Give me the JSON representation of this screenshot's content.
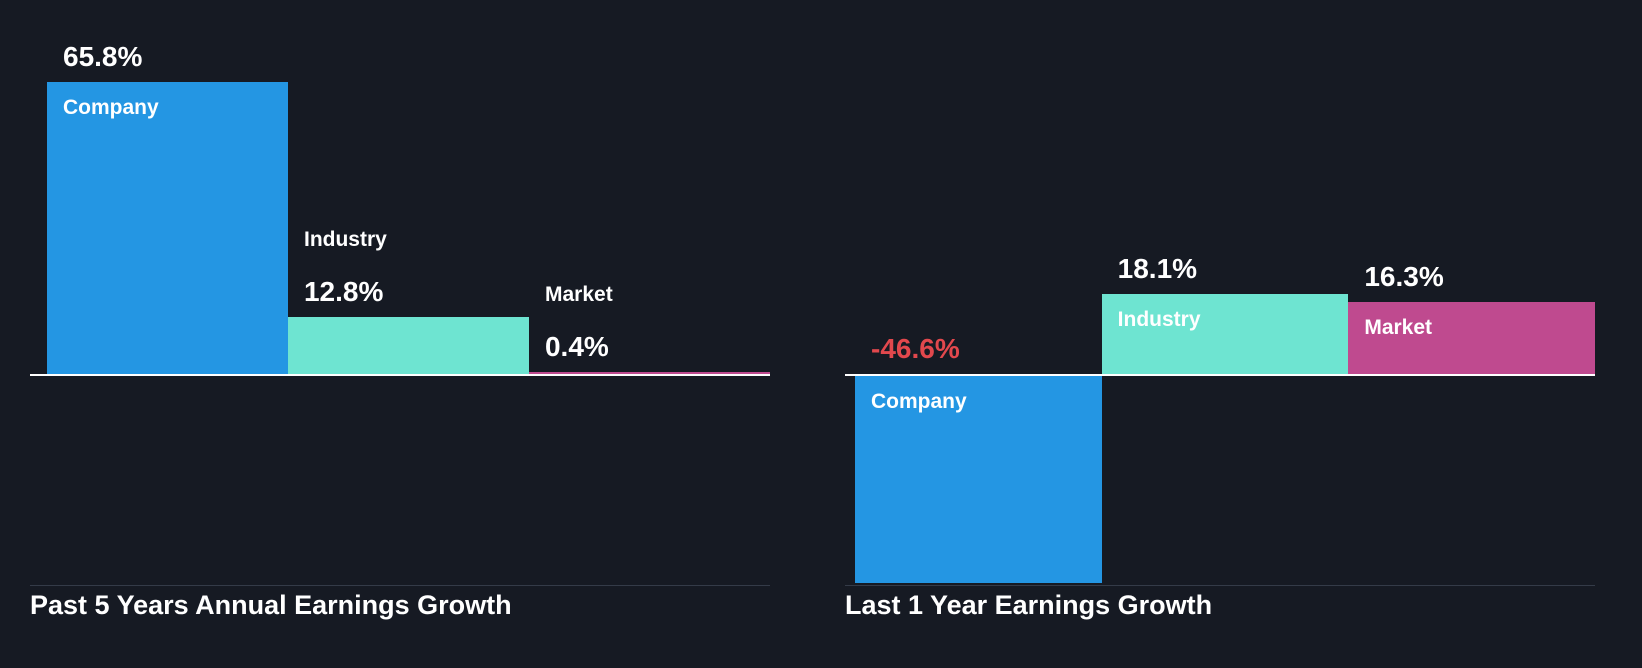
{
  "page": {
    "background": "#161a23",
    "baseline_color": "#ffffff",
    "divider_color": "#343b48",
    "title_color": "#ffffff"
  },
  "chart_data": [
    {
      "type": "bar",
      "title": "Past 5 Years Annual Earnings Growth",
      "categories": [
        "Company",
        "Industry",
        "Market"
      ],
      "values": [
        65.8,
        12.8,
        0.4
      ],
      "value_labels": [
        "65.8%",
        "12.8%",
        "0.4%"
      ],
      "colors": [
        "#2496e3",
        "#6ee4d1",
        "#bf4a8f"
      ],
      "value_colors": [
        "#ffffff",
        "#ffffff",
        "#ffffff"
      ],
      "label_positions": [
        "inside",
        "above",
        "above"
      ],
      "xlabel": "",
      "ylabel": "",
      "unit": "%",
      "axis": "zero-baseline",
      "grid": "off",
      "legend": "none"
    },
    {
      "type": "bar",
      "title": "Last 1 Year Earnings Growth",
      "categories": [
        "Company",
        "Industry",
        "Market"
      ],
      "values": [
        -46.6,
        18.1,
        16.3
      ],
      "value_labels": [
        "-46.6%",
        "18.1%",
        "16.3%"
      ],
      "colors": [
        "#2496e3",
        "#6ee4d1",
        "#bf4a8f"
      ],
      "value_colors": [
        "#e2484d",
        "#ffffff",
        "#ffffff"
      ],
      "label_positions": [
        "inside",
        "inside",
        "inside"
      ],
      "xlabel": "",
      "ylabel": "",
      "unit": "%",
      "axis": "zero-baseline",
      "grid": "off",
      "legend": "none"
    }
  ]
}
